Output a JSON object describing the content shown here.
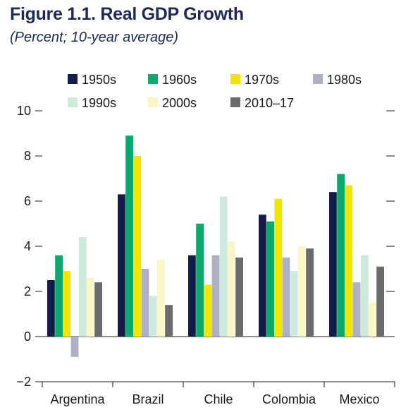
{
  "figure": {
    "title": "Figure 1.1. Real GDP Growth",
    "subtitle": "(Percent; 10-year average)"
  },
  "chart_data": {
    "type": "bar",
    "categories": [
      "Argentina",
      "Brazil",
      "Chile",
      "Colombia",
      "Mexico"
    ],
    "series": [
      {
        "name": "1950s",
        "color": "#141c4a",
        "values": [
          2.5,
          6.3,
          3.6,
          5.4,
          6.4
        ]
      },
      {
        "name": "1960s",
        "color": "#0ca86e",
        "values": [
          3.6,
          8.9,
          5.0,
          5.1,
          7.2
        ]
      },
      {
        "name": "1970s",
        "color": "#f2e600",
        "values": [
          2.9,
          8.0,
          2.3,
          6.1,
          6.7
        ]
      },
      {
        "name": "1980s",
        "color": "#aeb0c4",
        "values": [
          -0.9,
          3.0,
          3.6,
          3.5,
          2.4
        ]
      },
      {
        "name": "1990s",
        "color": "#cdeadc",
        "values": [
          4.4,
          1.8,
          6.2,
          2.9,
          3.6
        ]
      },
      {
        "name": "2000s",
        "color": "#fbf6c4",
        "values": [
          2.6,
          3.4,
          4.2,
          4.0,
          1.5
        ]
      },
      {
        "name": "2010–17",
        "color": "#6b6b6b",
        "values": [
          2.4,
          1.4,
          3.5,
          3.9,
          3.1
        ]
      }
    ],
    "ylim": [
      -2,
      10
    ],
    "yticks": [
      "−2",
      "0",
      "2",
      "4",
      "6",
      "8",
      "10"
    ],
    "ytick_values": [
      -2,
      0,
      2,
      4,
      6,
      8,
      10
    ],
    "legend_position": "top",
    "grid": false
  }
}
